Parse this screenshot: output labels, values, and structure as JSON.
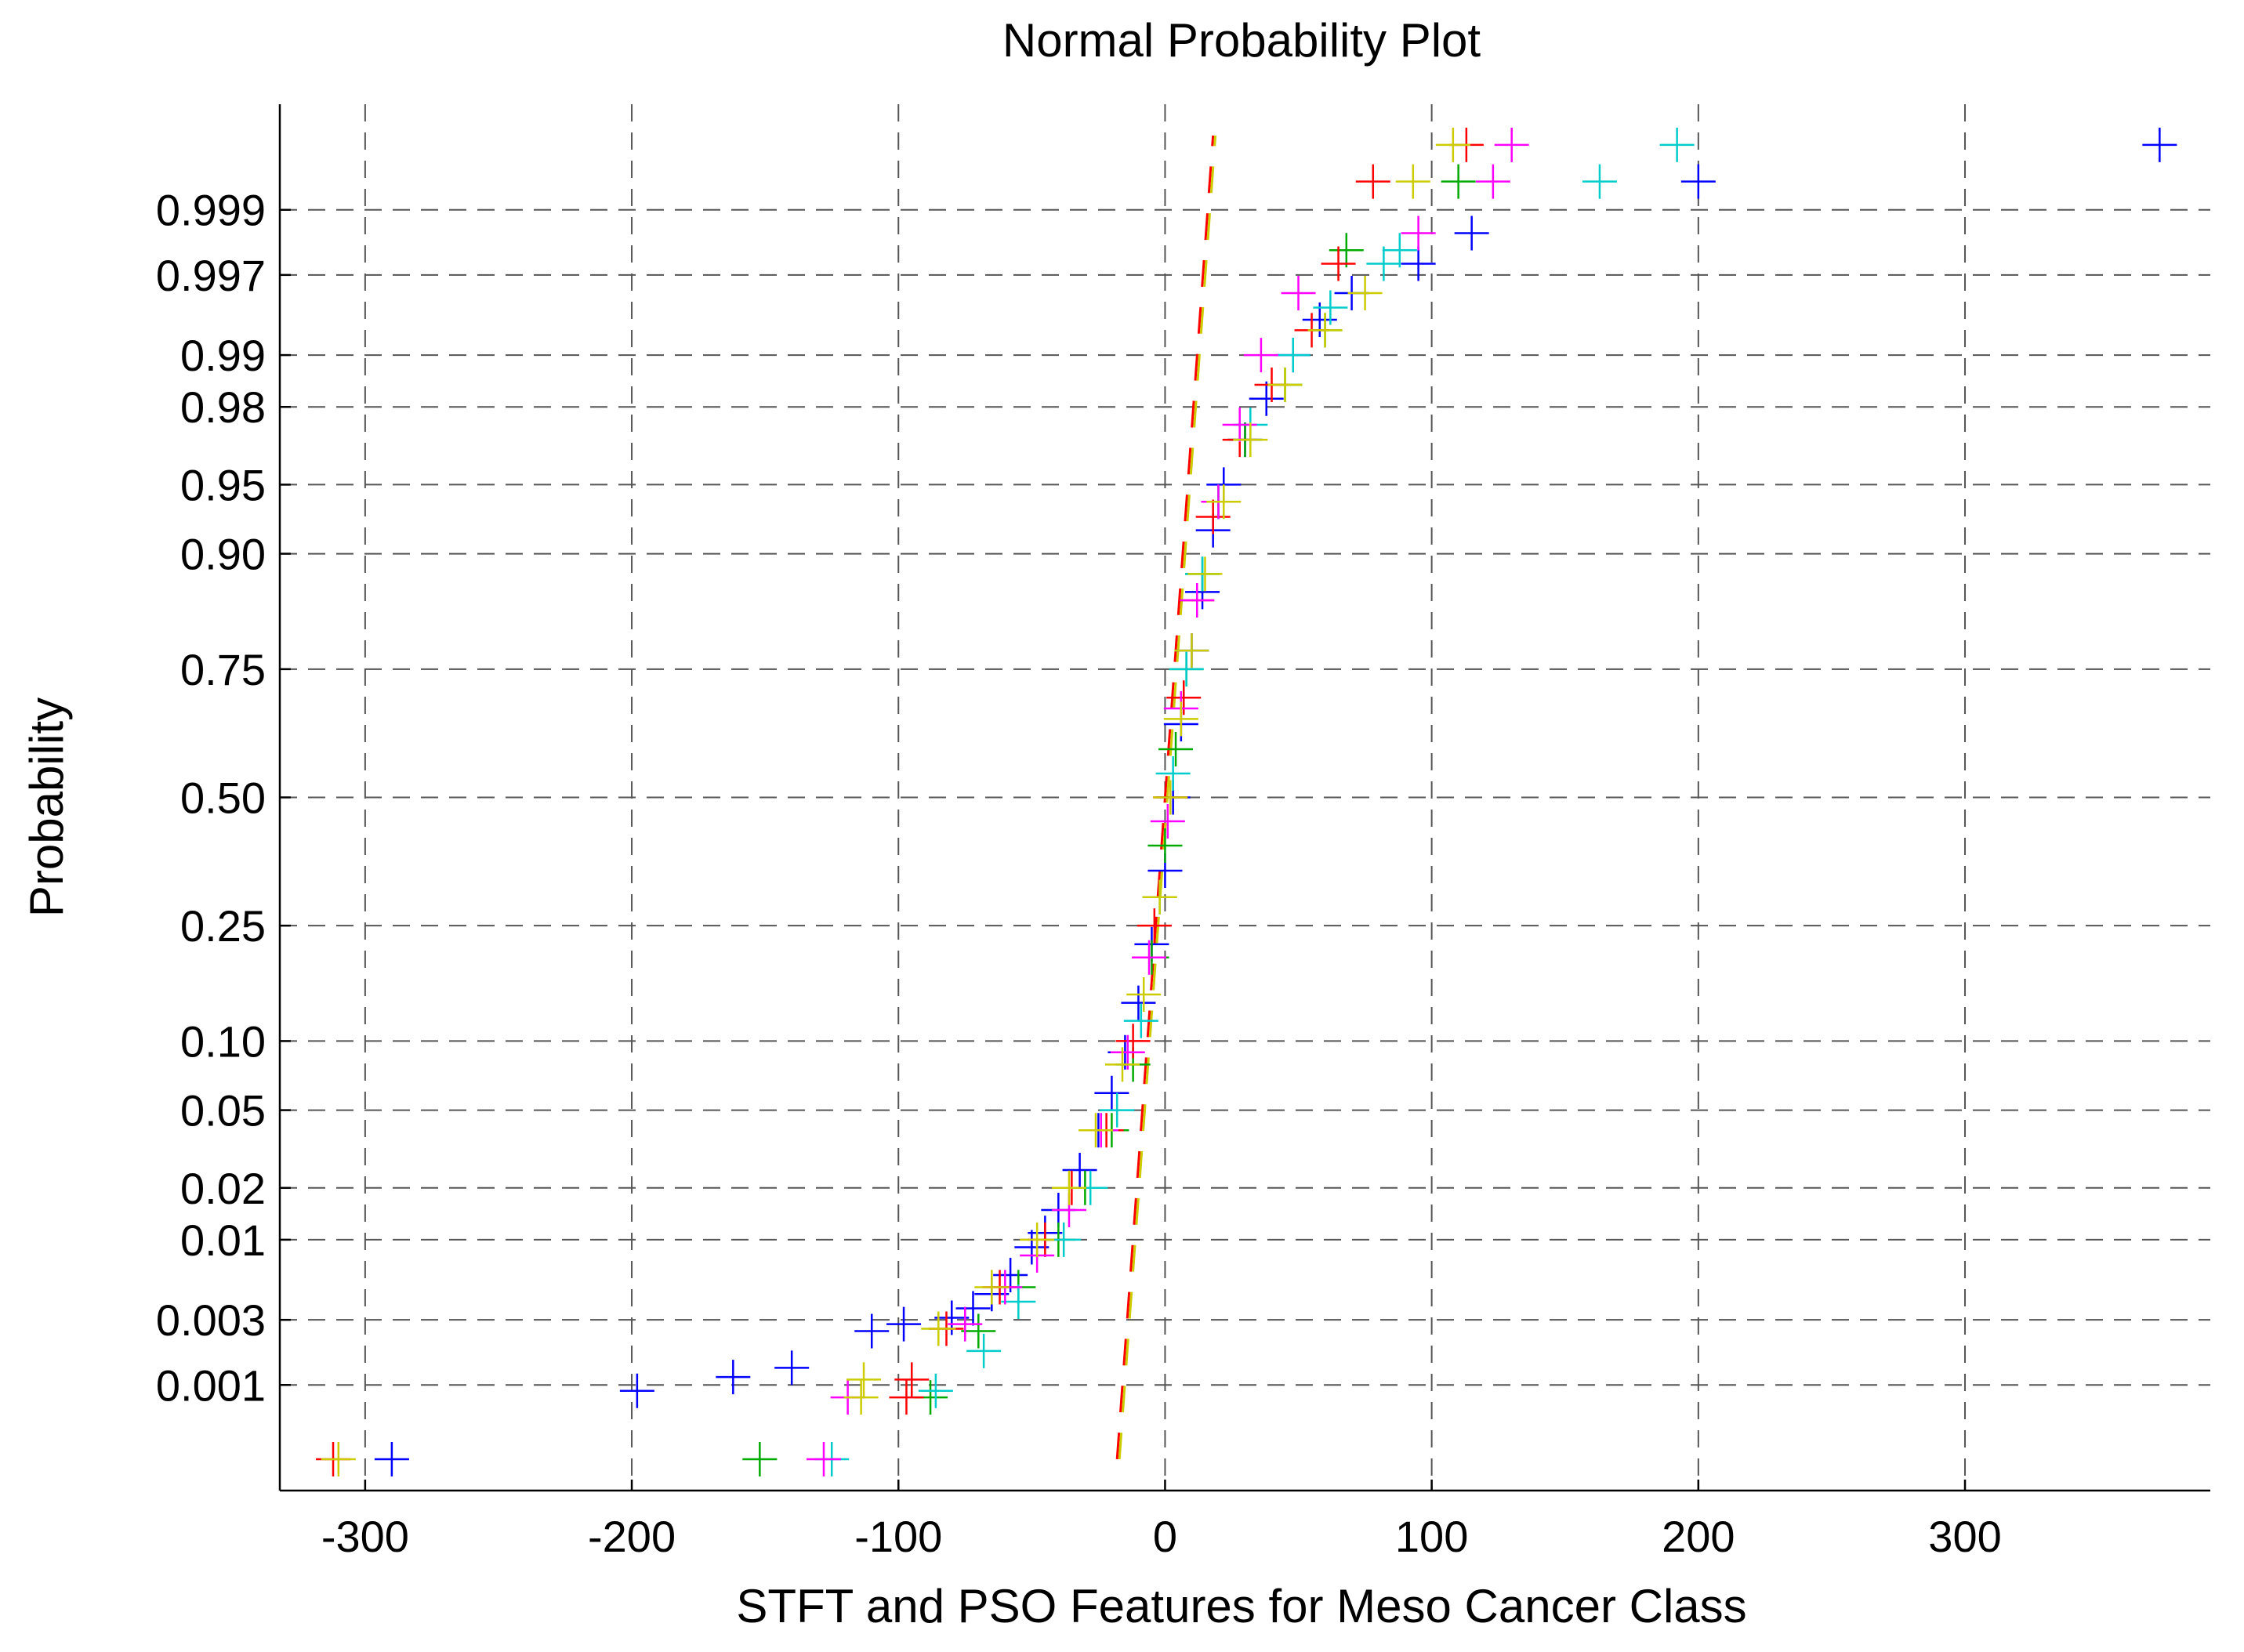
{
  "chart_data": {
    "type": "scatter",
    "title": "Normal Probability Plot",
    "xlabel": "STFT and PSO Features for Meso Cancer Class",
    "ylabel": "Probability",
    "xlim": [
      -332,
      392
    ],
    "x_ticks": [
      -300,
      -200,
      -100,
      0,
      100,
      200,
      300
    ],
    "x_tick_labels": [
      "-300",
      "-200",
      "-100",
      "0",
      "100",
      "200",
      "300"
    ],
    "y_scale": "normal-probability",
    "y_ticks": [
      0.001,
      0.003,
      0.01,
      0.02,
      0.05,
      0.1,
      0.25,
      0.5,
      0.75,
      0.9,
      0.95,
      0.98,
      0.99,
      0.997,
      0.999
    ],
    "y_tick_labels": [
      "0.001",
      "0.003",
      "0.01",
      "0.02",
      "0.05",
      "0.10",
      "0.25",
      "0.50",
      "0.75",
      "0.90",
      "0.95",
      "0.98",
      "0.99",
      "0.997",
      "0.999"
    ],
    "grid": true,
    "marker": "plus",
    "series_colors": [
      "#0000ff",
      "#00aa00",
      "#ff0000",
      "#00cccc",
      "#ff00ff",
      "#cccc00"
    ],
    "reference_line": {
      "style": "dashed",
      "colors": [
        "#ff0000",
        "#cccc00"
      ],
      "points": [
        [
          -18,
          0.00025
        ],
        [
          18,
          0.99975
        ]
      ]
    },
    "series": [
      {
        "color": "#0000ff",
        "points": [
          [
            -290,
            0.00025
          ],
          [
            -198,
            0.0009
          ],
          [
            -162,
            0.00115
          ],
          [
            -140,
            0.00135
          ],
          [
            -110,
            0.0025
          ],
          [
            -98,
            0.0028
          ],
          [
            -80,
            0.0031
          ],
          [
            -72,
            0.0036
          ],
          [
            -65,
            0.0045
          ],
          [
            -58,
            0.006
          ],
          [
            -50,
            0.009
          ],
          [
            -45,
            0.011
          ],
          [
            -40,
            0.015
          ],
          [
            -32,
            0.025
          ],
          [
            -25,
            0.04
          ],
          [
            -20,
            0.06
          ],
          [
            -15,
            0.09
          ],
          [
            -10,
            0.14
          ],
          [
            -5,
            0.22
          ],
          [
            0,
            0.35
          ],
          [
            3,
            0.5
          ],
          [
            6,
            0.65
          ],
          [
            10,
            0.78
          ],
          [
            14,
            0.86
          ],
          [
            18,
            0.92
          ],
          [
            22,
            0.95
          ],
          [
            30,
            0.97
          ],
          [
            38,
            0.982
          ],
          [
            48,
            0.99
          ],
          [
            58,
            0.994
          ],
          [
            70,
            0.996
          ],
          [
            95,
            0.9975
          ],
          [
            115,
            0.9985
          ],
          [
            200,
            0.9994
          ],
          [
            373,
            0.9997
          ]
        ]
      },
      {
        "color": "#00aa00",
        "points": [
          [
            -152,
            0.00025
          ],
          [
            -88,
            0.0008
          ],
          [
            -70,
            0.0025
          ],
          [
            -55,
            0.005
          ],
          [
            -40,
            0.01
          ],
          [
            -30,
            0.02
          ],
          [
            -20,
            0.04
          ],
          [
            -12,
            0.08
          ],
          [
            -5,
            0.2
          ],
          [
            0,
            0.4
          ],
          [
            4,
            0.6
          ],
          [
            8,
            0.75
          ],
          [
            14,
            0.88
          ],
          [
            20,
            0.94
          ],
          [
            30,
            0.97
          ],
          [
            45,
            0.985
          ],
          [
            60,
            0.993
          ],
          [
            68,
            0.998
          ],
          [
            110,
            0.9994
          ]
        ]
      },
      {
        "color": "#ff0000",
        "points": [
          [
            -312,
            0.00025
          ],
          [
            -97,
            0.0008
          ],
          [
            -95,
            0.0011
          ],
          [
            -82,
            0.0026
          ],
          [
            -62,
            0.005
          ],
          [
            -45,
            0.01
          ],
          [
            -35,
            0.02
          ],
          [
            -22,
            0.04
          ],
          [
            -12,
            0.1
          ],
          [
            -4,
            0.25
          ],
          [
            2,
            0.5
          ],
          [
            7,
            0.7
          ],
          [
            12,
            0.85
          ],
          [
            18,
            0.93
          ],
          [
            28,
            0.97
          ],
          [
            40,
            0.985
          ],
          [
            55,
            0.993
          ],
          [
            65,
            0.9975
          ],
          [
            78,
            0.9994
          ],
          [
            113,
            0.9997
          ]
        ]
      },
      {
        "color": "#00cccc",
        "points": [
          [
            -125,
            0.00025
          ],
          [
            -86,
            0.0009
          ],
          [
            -68,
            0.0018
          ],
          [
            -55,
            0.004
          ],
          [
            -38,
            0.01
          ],
          [
            -28,
            0.02
          ],
          [
            -18,
            0.05
          ],
          [
            -9,
            0.12
          ],
          [
            -2,
            0.3
          ],
          [
            3,
            0.55
          ],
          [
            8,
            0.75
          ],
          [
            14,
            0.88
          ],
          [
            20,
            0.94
          ],
          [
            32,
            0.975
          ],
          [
            48,
            0.99
          ],
          [
            62,
            0.995
          ],
          [
            82,
            0.9975
          ],
          [
            88,
            0.998
          ],
          [
            163,
            0.9994
          ],
          [
            192,
            0.9997
          ]
        ]
      },
      {
        "color": "#ff00ff",
        "points": [
          [
            -128,
            0.00025
          ],
          [
            -119,
            0.0008
          ],
          [
            -75,
            0.0028
          ],
          [
            -60,
            0.005
          ],
          [
            -48,
            0.008
          ],
          [
            -36,
            0.015
          ],
          [
            -24,
            0.04
          ],
          [
            -14,
            0.09
          ],
          [
            -6,
            0.2
          ],
          [
            1,
            0.45
          ],
          [
            6,
            0.68
          ],
          [
            12,
            0.85
          ],
          [
            20,
            0.94
          ],
          [
            28,
            0.975
          ],
          [
            36,
            0.99
          ],
          [
            50,
            0.996
          ],
          [
            95,
            0.9985
          ],
          [
            123,
            0.9994
          ],
          [
            130,
            0.9997
          ]
        ]
      },
      {
        "color": "#cccc00",
        "points": [
          [
            -310,
            0.00025
          ],
          [
            -114,
            0.0008
          ],
          [
            -113,
            0.0011
          ],
          [
            -85,
            0.0026
          ],
          [
            -65,
            0.005
          ],
          [
            -48,
            0.01
          ],
          [
            -36,
            0.02
          ],
          [
            -26,
            0.04
          ],
          [
            -16,
            0.08
          ],
          [
            -8,
            0.15
          ],
          [
            -2,
            0.3
          ],
          [
            2,
            0.5
          ],
          [
            6,
            0.66
          ],
          [
            10,
            0.78
          ],
          [
            15,
            0.88
          ],
          [
            22,
            0.94
          ],
          [
            32,
            0.97
          ],
          [
            45,
            0.985
          ],
          [
            60,
            0.993
          ],
          [
            75,
            0.996
          ],
          [
            93,
            0.9994
          ],
          [
            108,
            0.9997
          ]
        ]
      }
    ]
  }
}
